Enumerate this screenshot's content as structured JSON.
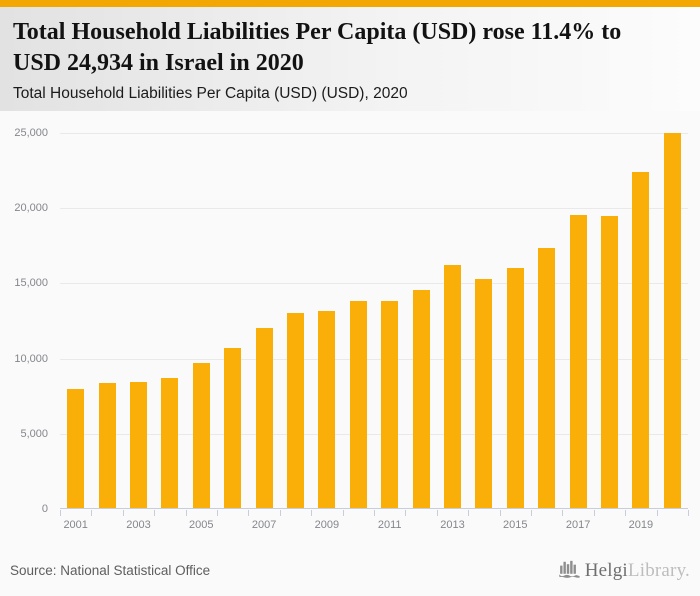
{
  "header": {
    "title": "Total Household Liabilities Per Capita (USD) rose 11.4% to USD 24,934 in Israel in 2020",
    "subtitle": "Total Household Liabilities Per Capita (USD) (USD), 2020"
  },
  "footer": {
    "source": "Source: National Statistical Office",
    "logo": {
      "icon": "helgi-library-icon",
      "text_primary": "Helgi",
      "text_secondary": "Library."
    }
  },
  "colors": {
    "accent_stripe": "#F2A702",
    "bar": "#FAAE08",
    "axis": "#C7CDDB",
    "gridline": "#E9E9E9",
    "axis_label": "#85868C",
    "background": "#FAFAFA"
  },
  "chart_data": {
    "type": "bar",
    "title": "Total Household Liabilities Per Capita (USD) rose 11.4% to USD 24,934 in Israel in 2020",
    "subtitle": "Total Household Liabilities Per Capita (USD) (USD), 2020",
    "categories": [
      "2001",
      "2002",
      "2003",
      "2004",
      "2005",
      "2006",
      "2007",
      "2008",
      "2009",
      "2010",
      "2011",
      "2012",
      "2013",
      "2014",
      "2015",
      "2016",
      "2017",
      "2018",
      "2019",
      "2020"
    ],
    "values": [
      7900,
      8280,
      8350,
      8650,
      9650,
      10650,
      11950,
      12950,
      13070,
      13760,
      13780,
      14500,
      16150,
      15200,
      15950,
      17300,
      19480,
      19410,
      22360,
      24934
    ],
    "highlight_value_2020": "24,934",
    "x_tick_labels": [
      "2001",
      "2003",
      "2005",
      "2007",
      "2009",
      "2011",
      "2013",
      "2015",
      "2017",
      "2019"
    ],
    "y_ticks": [
      0,
      5000,
      10000,
      15000,
      20000,
      25000
    ],
    "y_tick_labels": [
      "0",
      "5,000",
      "10,000",
      "15,000",
      "20,000",
      "25,000"
    ],
    "xlabel": "",
    "ylabel": "",
    "ylim": [
      0,
      25000
    ],
    "grid": true,
    "legend": "none"
  }
}
